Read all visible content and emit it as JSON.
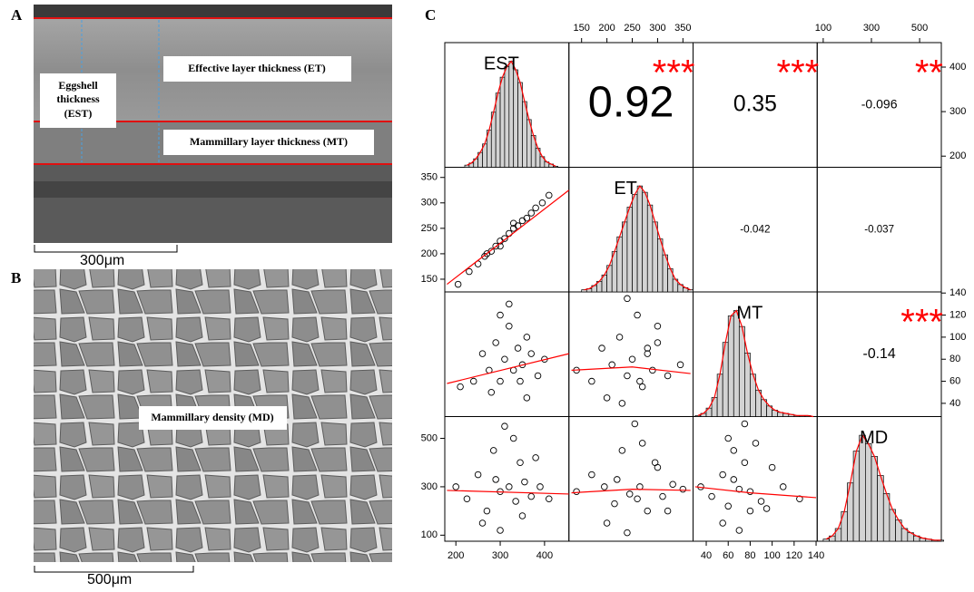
{
  "panel_a": {
    "label": "A",
    "est": [
      "Eggshell",
      "thickness",
      "(EST)"
    ],
    "et": "Effective layer thickness (ET)",
    "mt": "Mammillary layer thickness (MT)",
    "scale": "300μm"
  },
  "panel_b": {
    "label": "B",
    "md": "Mammillary density (MD)",
    "scale": "500μm"
  },
  "chart_data": {
    "type": "pairs",
    "label": "C",
    "hist_color": "#d3d3d3",
    "line_color": "#ff0000",
    "variables": [
      {
        "name": "EST",
        "lim": [
          175,
          455
        ],
        "ticks": [
          200,
          300,
          400
        ]
      },
      {
        "name": "ET",
        "lim": [
          125,
          370
        ],
        "ticks": [
          150,
          200,
          250,
          300,
          350
        ]
      },
      {
        "name": "MT",
        "lim": [
          28,
          141
        ],
        "ticks": [
          40,
          60,
          80,
          100,
          120,
          140
        ]
      },
      {
        "name": "MD",
        "lim": [
          75,
          590
        ],
        "ticks": [
          100,
          300,
          500
        ]
      }
    ],
    "histograms": [
      {
        "bins": [
          220,
          230,
          240,
          250,
          260,
          270,
          280,
          290,
          300,
          310,
          320,
          330,
          340,
          350,
          360,
          370,
          380,
          390,
          400,
          410,
          420,
          430
        ],
        "counts": [
          2,
          4,
          8,
          14,
          22,
          35,
          52,
          70,
          85,
          95,
          100,
          92,
          80,
          62,
          45,
          30,
          18,
          10,
          5,
          3,
          1
        ]
      },
      {
        "bins": [
          150,
          160,
          170,
          180,
          190,
          200,
          210,
          220,
          230,
          240,
          250,
          260,
          270,
          280,
          290,
          300,
          310,
          320,
          330,
          340,
          350,
          360,
          370
        ],
        "counts": [
          2,
          3,
          6,
          10,
          16,
          25,
          38,
          52,
          66,
          80,
          92,
          100,
          94,
          82,
          66,
          50,
          35,
          22,
          12,
          7,
          4,
          2
        ]
      },
      {
        "bins": [
          30,
          35,
          40,
          45,
          50,
          55,
          60,
          65,
          70,
          75,
          80,
          85,
          90,
          95,
          100,
          105,
          110,
          115,
          120,
          125,
          130,
          135,
          140
        ],
        "counts": [
          1,
          3,
          8,
          18,
          40,
          70,
          95,
          100,
          85,
          60,
          40,
          25,
          16,
          10,
          6,
          4,
          3,
          2,
          1,
          1,
          1,
          0
        ]
      },
      {
        "bins": [
          100,
          125,
          150,
          175,
          200,
          225,
          250,
          275,
          300,
          325,
          350,
          375,
          400,
          425,
          450,
          475,
          500,
          525,
          550,
          575,
          600
        ],
        "counts": [
          2,
          5,
          12,
          28,
          55,
          85,
          100,
          92,
          80,
          62,
          45,
          30,
          20,
          12,
          8,
          5,
          3,
          2,
          1,
          1
        ]
      }
    ],
    "correlations": [
      {
        "x_var": 1,
        "y_var": 0,
        "r": 0.92,
        "stars": "***"
      },
      {
        "x_var": 2,
        "y_var": 0,
        "r": 0.35,
        "stars": "***"
      },
      {
        "x_var": 3,
        "y_var": 0,
        "r": -0.096,
        "stars": "**"
      },
      {
        "x_var": 2,
        "y_var": 1,
        "r": -0.042
      },
      {
        "x_var": 3,
        "y_var": 1,
        "r": -0.037
      },
      {
        "x_var": 3,
        "y_var": 2,
        "r": -0.14,
        "stars": "***"
      }
    ],
    "scatter": [
      {
        "x_var": 0,
        "y_var": 1,
        "x": [
          205,
          230,
          250,
          265,
          280,
          290,
          300,
          310,
          320,
          330,
          340,
          350,
          360,
          370,
          380,
          395,
          410,
          300,
          330,
          270
        ],
        "y": [
          140,
          165,
          180,
          195,
          205,
          215,
          225,
          230,
          240,
          250,
          255,
          265,
          270,
          280,
          290,
          300,
          315,
          215,
          260,
          200
        ],
        "smooth_x": [
          180,
          455
        ],
        "smooth_y": [
          140,
          325
        ]
      },
      {
        "x_var": 0,
        "y_var": 2,
        "x": [
          210,
          240,
          260,
          275,
          290,
          300,
          310,
          320,
          330,
          340,
          350,
          360,
          370,
          385,
          400,
          280,
          320,
          345,
          300,
          360
        ],
        "y": [
          55,
          60,
          85,
          70,
          95,
          60,
          80,
          110,
          70,
          90,
          75,
          100,
          85,
          65,
          80,
          50,
          130,
          60,
          120,
          45
        ],
        "smooth_x": [
          180,
          455
        ],
        "smooth_y": [
          58,
          85
        ]
      },
      {
        "x_var": 1,
        "y_var": 2,
        "x": [
          140,
          170,
          190,
          210,
          225,
          240,
          250,
          260,
          270,
          280,
          290,
          300,
          320,
          345,
          200,
          240,
          265,
          300,
          230,
          280
        ],
        "y": [
          70,
          60,
          90,
          75,
          100,
          65,
          80,
          120,
          55,
          85,
          70,
          95,
          65,
          75,
          45,
          135,
          60,
          110,
          40,
          90
        ],
        "smooth_x": [
          130,
          250,
          365
        ],
        "smooth_y": [
          70,
          73,
          67
        ]
      },
      {
        "x_var": 0,
        "y_var": 3,
        "x": [
          200,
          225,
          250,
          270,
          285,
          300,
          310,
          320,
          335,
          345,
          355,
          370,
          390,
          410,
          260,
          300,
          330,
          380,
          290,
          350
        ],
        "y": [
          300,
          250,
          350,
          200,
          450,
          280,
          550,
          300,
          240,
          400,
          320,
          260,
          300,
          250,
          150,
          120,
          500,
          420,
          330,
          180
        ],
        "smooth_x": [
          180,
          455
        ],
        "smooth_y": [
          285,
          270
        ]
      },
      {
        "x_var": 1,
        "y_var": 3,
        "x": [
          140,
          170,
          195,
          215,
          230,
          245,
          255,
          265,
          280,
          295,
          310,
          330,
          350,
          200,
          240,
          270,
          300,
          220,
          260,
          320
        ],
        "y": [
          280,
          350,
          300,
          230,
          450,
          270,
          560,
          300,
          200,
          400,
          260,
          310,
          290,
          150,
          110,
          480,
          380,
          330,
          250,
          200
        ],
        "smooth_x": [
          130,
          250,
          365
        ],
        "smooth_y": [
          275,
          290,
          285
        ]
      },
      {
        "x_var": 2,
        "y_var": 3,
        "x": [
          35,
          45,
          55,
          60,
          65,
          70,
          75,
          80,
          90,
          100,
          110,
          125,
          55,
          70,
          85,
          65,
          95,
          75,
          60,
          80
        ],
        "y": [
          300,
          260,
          350,
          220,
          450,
          290,
          560,
          280,
          240,
          380,
          300,
          250,
          150,
          120,
          480,
          330,
          210,
          400,
          500,
          200
        ],
        "smooth_x": [
          30,
          80,
          140
        ],
        "smooth_y": [
          300,
          275,
          255
        ]
      }
    ]
  }
}
